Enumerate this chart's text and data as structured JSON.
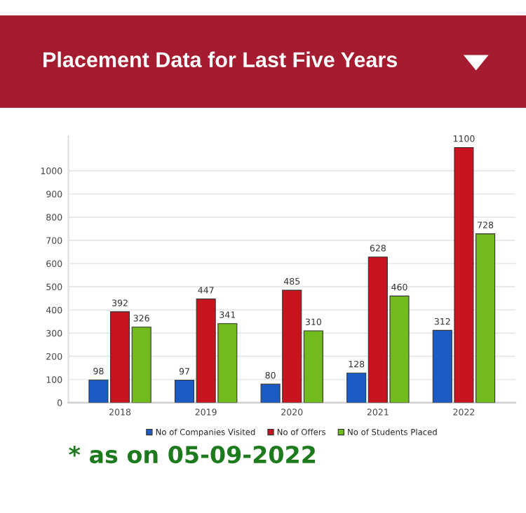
{
  "chart_data": {
    "type": "bar",
    "title": "Placement Data for Last Five Years",
    "categories": [
      "2018",
      "2019",
      "2020",
      "2021",
      "2022"
    ],
    "series": [
      {
        "name": "No of Companies Visited",
        "color": "#1a5cc4",
        "values": [
          98,
          97,
          80,
          128,
          312
        ]
      },
      {
        "name": "No of Offers",
        "color": "#c8141e",
        "values": [
          392,
          447,
          485,
          628,
          1100
        ]
      },
      {
        "name": "No of Students Placed",
        "color": "#72bb1e",
        "values": [
          326,
          341,
          310,
          460,
          728
        ]
      }
    ],
    "ylim": [
      0,
      1150
    ],
    "yticks": [
      0,
      100,
      200,
      300,
      400,
      500,
      600,
      700,
      800,
      900,
      1000
    ],
    "grid": "y",
    "legend": "bottom",
    "data_labels": true,
    "annotations": [
      "* as on 05-09-2022"
    ]
  }
}
